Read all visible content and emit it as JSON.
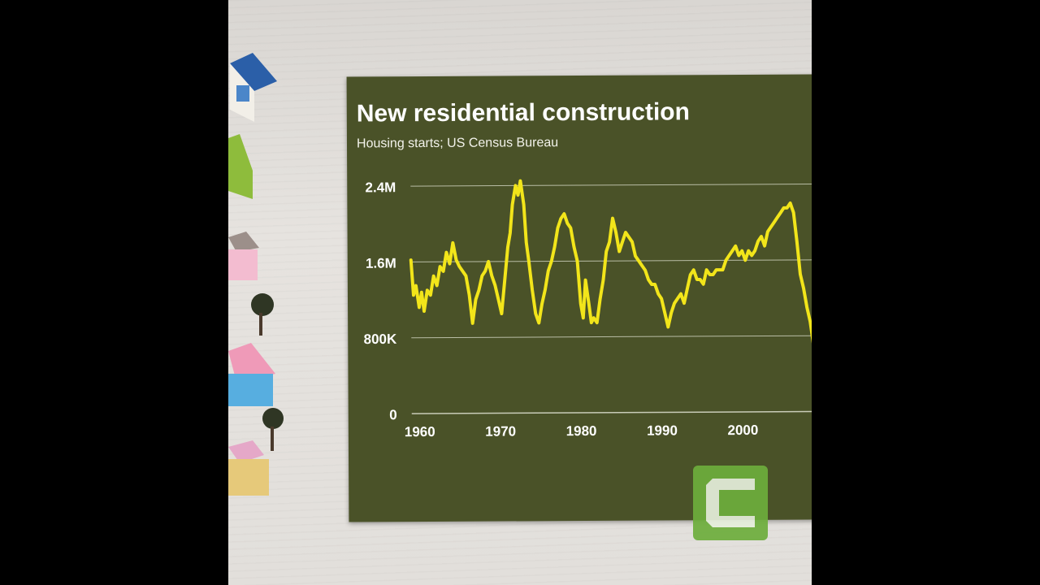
{
  "chart_data": {
    "type": "line",
    "title": "New residential construction",
    "subtitle": "Housing starts; US Census Bureau",
    "xlabel": "",
    "ylabel": "",
    "xlim": [
      1959,
      2009
    ],
    "ylim": [
      0,
      2400000
    ],
    "y_ticks": [
      {
        "value": 0,
        "label": "0"
      },
      {
        "value": 800000,
        "label": "800K"
      },
      {
        "value": 1600000,
        "label": "1.6M"
      },
      {
        "value": 2400000,
        "label": "2.4M"
      }
    ],
    "x_ticks": [
      {
        "value": 1960,
        "label": "1960"
      },
      {
        "value": 1970,
        "label": "1970"
      },
      {
        "value": 1980,
        "label": "1980"
      },
      {
        "value": 1990,
        "label": "1990"
      },
      {
        "value": 2000,
        "label": "2000"
      }
    ],
    "grid": true,
    "line_color": "#f2e51a",
    "series": [
      {
        "x": [
          1959.0,
          1959.3,
          1959.6,
          1960.0,
          1960.3,
          1960.6,
          1961.0,
          1961.4,
          1961.8,
          1962.2,
          1962.6,
          1963.0,
          1963.4,
          1963.8,
          1964.2,
          1964.6,
          1965.0,
          1965.4,
          1965.8,
          1966.2,
          1966.6,
          1967.0,
          1967.4,
          1967.8,
          1968.2,
          1968.6,
          1969.0,
          1969.4,
          1969.8,
          1970.2,
          1970.6,
          1971.0,
          1971.3,
          1971.6,
          1972.0,
          1972.3,
          1972.6,
          1973.0,
          1973.3,
          1973.6,
          1974.0,
          1974.4,
          1974.8,
          1975.2,
          1975.6,
          1976.0,
          1976.4,
          1976.8,
          1977.2,
          1977.6,
          1978.0,
          1978.4,
          1978.8,
          1979.2,
          1979.6,
          1980.0,
          1980.3,
          1980.6,
          1981.0,
          1981.3,
          1981.6,
          1982.0,
          1982.4,
          1982.8,
          1983.2,
          1983.6,
          1984.0,
          1984.4,
          1984.8,
          1985.2,
          1985.6,
          1986.0,
          1986.4,
          1986.8,
          1987.2,
          1987.6,
          1988.0,
          1988.4,
          1988.8,
          1989.2,
          1989.6,
          1990.0,
          1990.4,
          1990.8,
          1991.2,
          1991.6,
          1992.0,
          1992.4,
          1992.8,
          1993.2,
          1993.6,
          1994.0,
          1994.4,
          1994.8,
          1995.2,
          1995.6,
          1996.0,
          1996.4,
          1996.8,
          1997.2,
          1997.6,
          1998.0,
          1998.4,
          1998.8,
          1999.2,
          1999.6,
          2000.0,
          2000.4,
          2000.8,
          2001.2,
          2001.6,
          2002.0,
          2002.4,
          2002.8,
          2003.2,
          2003.6,
          2004.0,
          2004.4,
          2004.8,
          2005.2,
          2005.6,
          2006.0,
          2006.4,
          2006.8,
          2007.2,
          2007.6,
          2008.0,
          2008.4,
          2008.8,
          2009.0
        ],
        "y": [
          1620000,
          1250000,
          1350000,
          1120000,
          1280000,
          1080000,
          1300000,
          1250000,
          1450000,
          1350000,
          1550000,
          1500000,
          1700000,
          1580000,
          1800000,
          1620000,
          1550000,
          1500000,
          1450000,
          1250000,
          950000,
          1200000,
          1300000,
          1450000,
          1500000,
          1600000,
          1450000,
          1350000,
          1200000,
          1050000,
          1400000,
          1750000,
          1900000,
          2200000,
          2400000,
          2300000,
          2450000,
          2200000,
          1800000,
          1600000,
          1300000,
          1050000,
          950000,
          1150000,
          1300000,
          1500000,
          1600000,
          1750000,
          1950000,
          2050000,
          2100000,
          2000000,
          1950000,
          1750000,
          1600000,
          1150000,
          1000000,
          1400000,
          1150000,
          950000,
          1000000,
          950000,
          1200000,
          1400000,
          1700000,
          1800000,
          2050000,
          1900000,
          1700000,
          1800000,
          1900000,
          1850000,
          1800000,
          1650000,
          1600000,
          1550000,
          1500000,
          1400000,
          1350000,
          1350000,
          1250000,
          1200000,
          1050000,
          900000,
          1050000,
          1150000,
          1200000,
          1250000,
          1150000,
          1300000,
          1450000,
          1500000,
          1400000,
          1400000,
          1350000,
          1500000,
          1450000,
          1450000,
          1500000,
          1500000,
          1500000,
          1600000,
          1650000,
          1700000,
          1750000,
          1650000,
          1700000,
          1600000,
          1700000,
          1650000,
          1700000,
          1800000,
          1850000,
          1750000,
          1900000,
          1950000,
          2000000,
          2050000,
          2100000,
          2150000,
          2150000,
          2200000,
          2100000,
          1800000,
          1450000,
          1300000,
          1100000,
          950000,
          700000,
          550000
        ]
      }
    ]
  }
}
